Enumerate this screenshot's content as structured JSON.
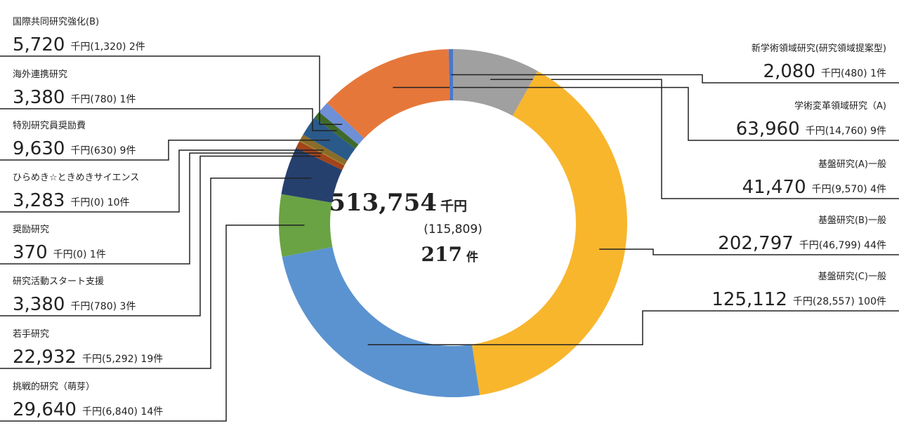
{
  "chart_data": {
    "type": "donut",
    "categories": [
      "基盤研究(A)一般",
      "基盤研究(B)一般",
      "基盤研究(C)一般",
      "挑戦的研究（萌芽）",
      "若手研究",
      "研究活動スタート支援",
      "奨励研究",
      "ひらめき☆ときめきサイエンス",
      "特別研究員奨励費",
      "海外連携研究",
      "国際共同研究強化(B)",
      "学術変革領域研究（A)",
      "新学術領域研究(研究領域提案型)"
    ],
    "values": [
      41470,
      202797,
      125112,
      29640,
      22932,
      3380,
      370,
      3283,
      9630,
      3380,
      5720,
      63960,
      2080
    ],
    "value_labels": [
      "41,470",
      "202,797",
      "125,112",
      "29,640",
      "22,932",
      "3,380",
      "370",
      "3,283",
      "9,630",
      "3,380",
      "5,720",
      "63,960",
      "2,080"
    ],
    "details": [
      "千円(9,570) 4件",
      "千円(46,799) 44件",
      "千円(28,557) 100件",
      "千円(6,840) 14件",
      "千円(5,292) 19件",
      "千円(780) 3件",
      "千円(0) 1件",
      "千円(0) 10件",
      "千円(630) 9件",
      "千円(780) 1件",
      "千円(1,320) 2件",
      "千円(14,760) 9件",
      "千円(480) 1件"
    ],
    "colors": [
      "#a0a0a0",
      "#f8b62d",
      "#5b93d0",
      "#6aa343",
      "#26406e",
      "#a3441b",
      "#a88420",
      "#8a6d2a",
      "#2a5a8a",
      "#3f6a2a",
      "#6f8fd6",
      "#e6773a",
      "#4a78c8"
    ],
    "center": {
      "total": {
        "value": 513754,
        "label": "513,754"
      },
      "unit": "千円",
      "indirect": "(115,809)",
      "count": 217,
      "count_unit": "件"
    }
  }
}
